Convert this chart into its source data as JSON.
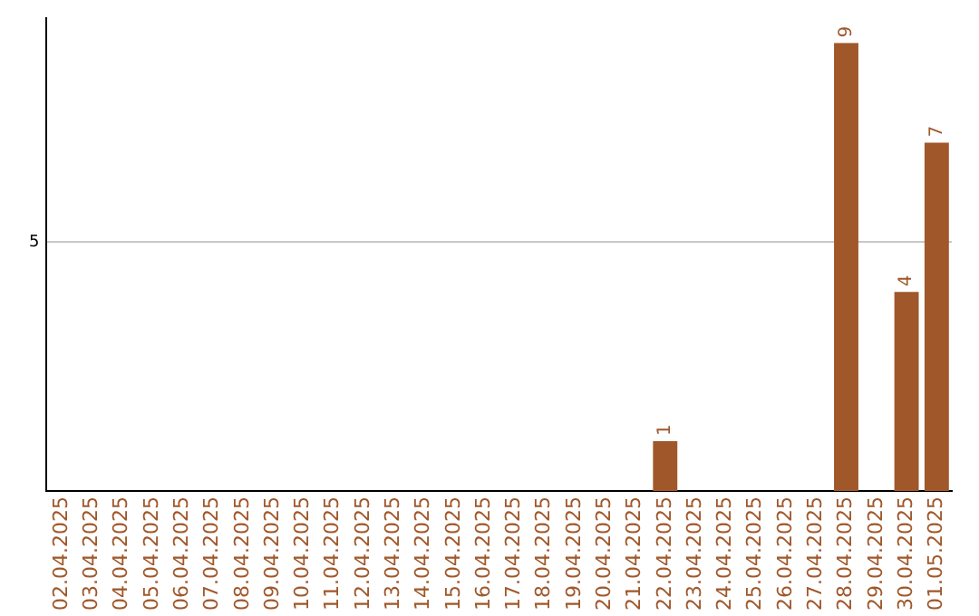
{
  "chart_data": {
    "type": "bar",
    "categories": [
      "02.04.2025",
      "03.04.2025",
      "04.04.2025",
      "05.04.2025",
      "06.04.2025",
      "07.04.2025",
      "08.04.2025",
      "09.04.2025",
      "10.04.2025",
      "11.04.2025",
      "12.04.2025",
      "13.04.2025",
      "14.04.2025",
      "15.04.2025",
      "16.04.2025",
      "17.04.2025",
      "18.04.2025",
      "19.04.2025",
      "20.04.2025",
      "21.04.2025",
      "22.04.2025",
      "23.04.2025",
      "24.04.2025",
      "25.04.2025",
      "26.04.2025",
      "27.04.2025",
      "28.04.2025",
      "29.04.2025",
      "30.04.2025",
      "01.05.2025"
    ],
    "values": [
      null,
      null,
      null,
      null,
      null,
      null,
      null,
      null,
      null,
      null,
      null,
      null,
      null,
      null,
      null,
      null,
      null,
      null,
      null,
      null,
      1,
      null,
      null,
      null,
      null,
      null,
      9,
      null,
      4,
      7
    ],
    "data_labels": true,
    "color": "#a0572a",
    "ylim": [
      0,
      9.5
    ],
    "yticks": [
      5
    ],
    "grid": "y",
    "legend": false
  }
}
